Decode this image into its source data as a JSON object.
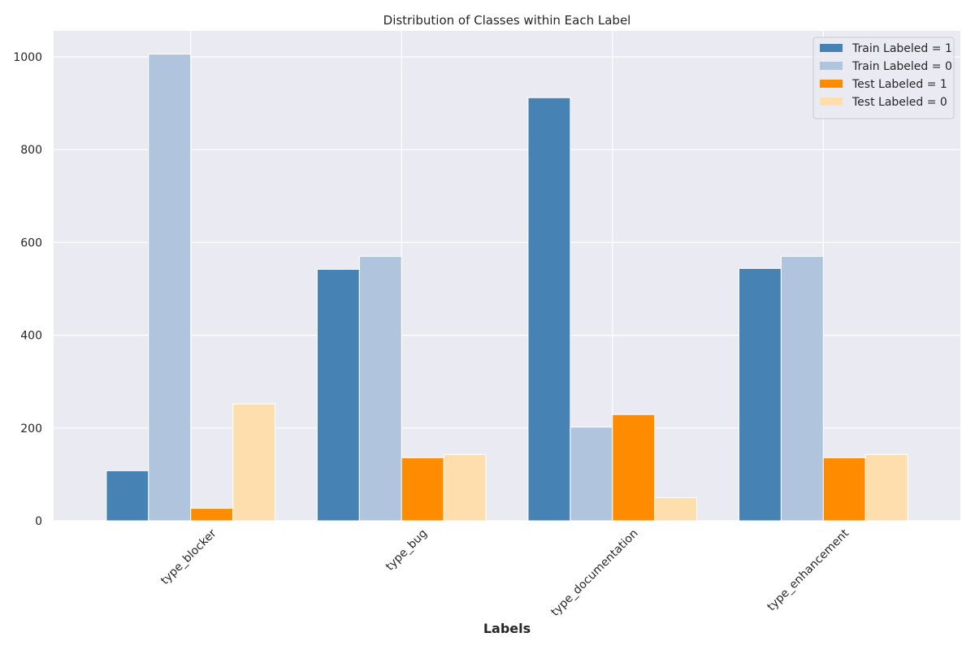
{
  "chart_data": {
    "type": "bar",
    "title": "Distribution of Classes within Each Label",
    "xlabel": "Labels",
    "ylabel": "",
    "categories": [
      "type_blocker",
      "type_bug",
      "type_documentation",
      "type_enhancement"
    ],
    "series": [
      {
        "name": "Train Labeled = 1",
        "color": "#4682b4",
        "values": [
          108,
          542,
          912,
          544
        ]
      },
      {
        "name": "Train Labeled = 0",
        "color": "#b0c4de",
        "values": [
          1006,
          570,
          202,
          570
        ]
      },
      {
        "name": "Test Labeled = 1",
        "color": "#ff8c00",
        "values": [
          27,
          136,
          229,
          136
        ]
      },
      {
        "name": "Test Labeled = 0",
        "color": "#ffdead",
        "values": [
          252,
          143,
          50,
          143
        ]
      }
    ],
    "ylim": [
      0,
      1056
    ],
    "yticks": [
      0,
      200,
      400,
      600,
      800,
      1000
    ],
    "grid": true,
    "legend_position": "top-right",
    "background": "#eaeaf2"
  }
}
